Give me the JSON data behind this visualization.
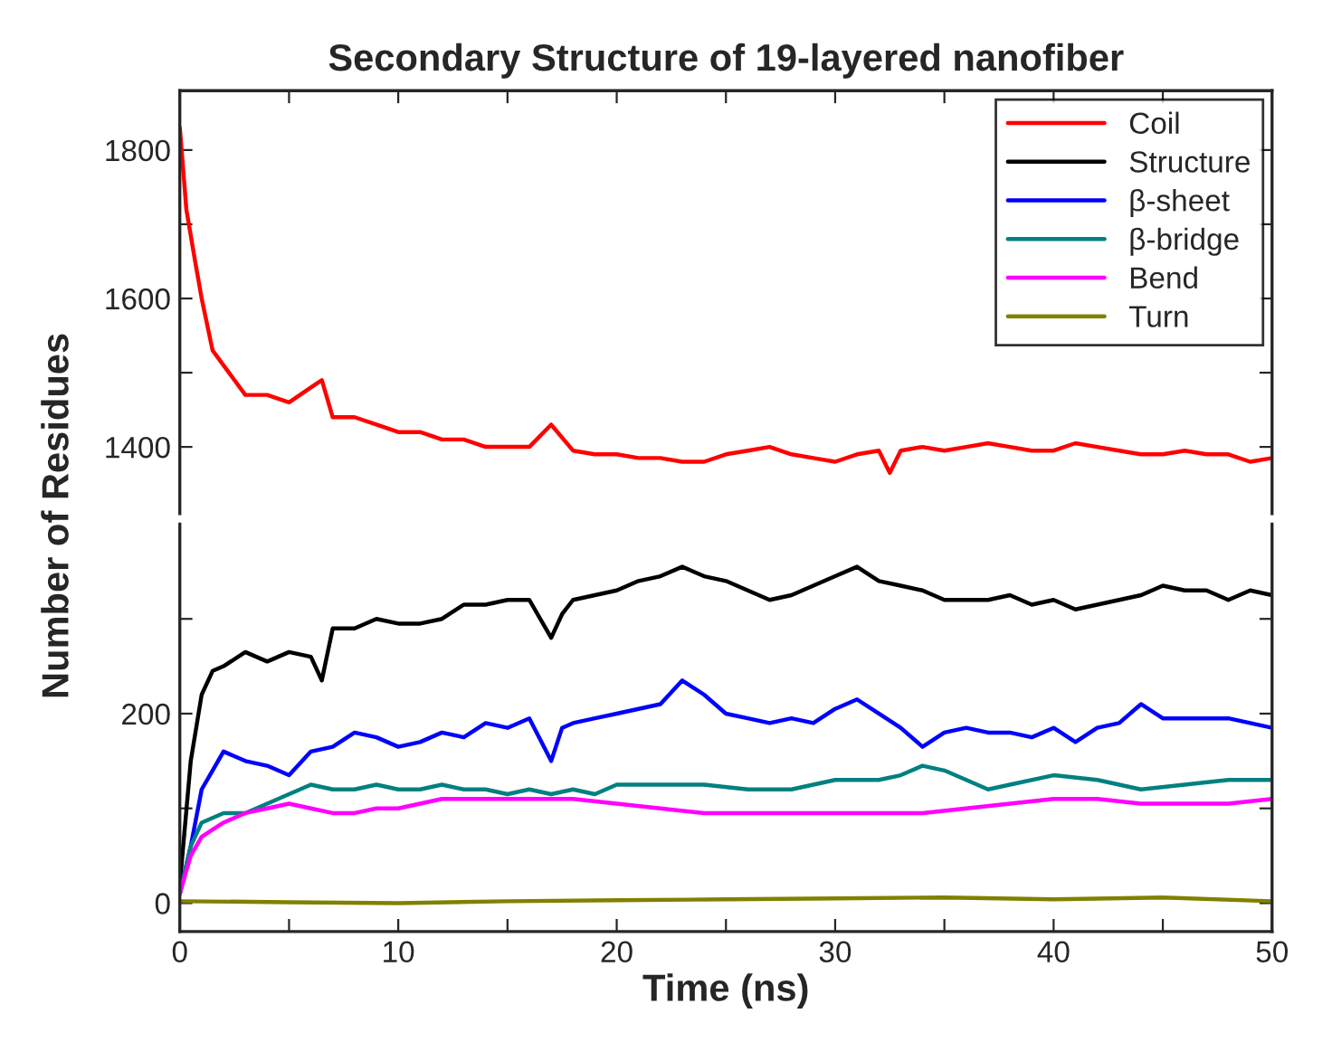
{
  "chart_data": [
    {
      "type": "line",
      "title": "Secondary Structure of 19-layered nanofiber",
      "legend": "top right",
      "tick_labels": "y",
      "grid": false,
      "xlim": [
        0,
        50
      ],
      "xticks": [
        {
          "value": 0,
          "label": null
        },
        {
          "value": 5,
          "label": null
        },
        {
          "value": 10,
          "label": null
        },
        {
          "value": 15,
          "label": null
        },
        {
          "value": 20,
          "label": null
        },
        {
          "value": 25,
          "label": null
        },
        {
          "value": 30,
          "label": null
        },
        {
          "value": 35,
          "label": null
        },
        {
          "value": 40,
          "label": null
        },
        {
          "value": 45,
          "label": null
        },
        {
          "value": 50,
          "label": null
        }
      ],
      "ylim": [
        1310,
        1880
      ],
      "yticks": [
        1400,
        {
          "value": 1500,
          "label": null
        },
        1600,
        {
          "value": 1700,
          "label": null
        },
        1800
      ],
      "series": [
        {
          "name": "Coil",
          "color": "#ff0000",
          "x": [
            0,
            0.3,
            0.7,
            1,
            1.5,
            2,
            2.5,
            3,
            4,
            5,
            6,
            6.5,
            7,
            8,
            9,
            10,
            11,
            12,
            13,
            14,
            15,
            16,
            17,
            18,
            19,
            20,
            21,
            22,
            23,
            24,
            25,
            26,
            27,
            28,
            29,
            30,
            31,
            32,
            32.5,
            33,
            34,
            35,
            36,
            37,
            38,
            39,
            40,
            41,
            42,
            43,
            44,
            45,
            46,
            47,
            48,
            49,
            50
          ],
          "values": [
            1830,
            1720,
            1650,
            1600,
            1530,
            1510,
            1490,
            1470,
            1470,
            1460,
            1480,
            1490,
            1440,
            1440,
            1430,
            1420,
            1420,
            1410,
            1410,
            1400,
            1400,
            1400,
            1430,
            1395,
            1390,
            1390,
            1385,
            1385,
            1380,
            1380,
            1390,
            1395,
            1400,
            1390,
            1385,
            1380,
            1390,
            1395,
            1365,
            1395,
            1400,
            1395,
            1400,
            1405,
            1400,
            1395,
            1395,
            1405,
            1400,
            1395,
            1390,
            1390,
            1395,
            1390,
            1390,
            1380,
            1385
          ]
        }
      ]
    },
    {
      "type": "line",
      "xlabel": "Time (ns)",
      "ylabel": "Number of Residues",
      "grid": false,
      "legend": "top right",
      "xlim": [
        0,
        50
      ],
      "xticks": [
        0,
        {
          "value": 5,
          "label": null
        },
        10,
        {
          "value": 15,
          "label": null
        },
        20,
        {
          "value": 25,
          "label": null
        },
        30,
        {
          "value": 35,
          "label": null
        },
        40,
        {
          "value": 45,
          "label": null
        },
        50
      ],
      "ylim": [
        -30,
        400
      ],
      "yticks": [
        0,
        {
          "value": 100,
          "label": null
        },
        200,
        {
          "value": 300,
          "label": null
        }
      ],
      "series": [
        {
          "name": "Structure",
          "color": "#000000",
          "x": [
            0,
            0.5,
            1,
            1.5,
            2,
            3,
            4,
            5,
            6,
            6.5,
            7,
            8,
            9,
            10,
            11,
            12,
            13,
            14,
            15,
            16,
            17,
            17.5,
            18,
            19,
            20,
            21,
            22,
            23,
            24,
            25,
            26,
            27,
            28,
            29,
            30,
            31,
            32,
            33,
            34,
            35,
            36,
            37,
            38,
            39,
            40,
            41,
            42,
            43,
            44,
            45,
            46,
            47,
            48,
            49,
            50
          ],
          "values": [
            20,
            150,
            220,
            245,
            250,
            265,
            255,
            265,
            260,
            235,
            290,
            290,
            300,
            295,
            295,
            300,
            315,
            315,
            320,
            320,
            280,
            305,
            320,
            325,
            330,
            340,
            345,
            355,
            345,
            340,
            330,
            320,
            325,
            335,
            345,
            355,
            340,
            335,
            330,
            320,
            320,
            320,
            325,
            315,
            320,
            310,
            315,
            320,
            325,
            335,
            330,
            330,
            320,
            330,
            325
          ]
        },
        {
          "name": "β-sheet",
          "color": "#0000ff",
          "x": [
            0,
            0.5,
            1,
            1.5,
            2,
            3,
            4,
            5,
            6,
            7,
            8,
            9,
            10,
            11,
            12,
            13,
            14,
            15,
            16,
            17,
            17.5,
            18,
            19,
            20,
            21,
            22,
            23,
            24,
            25,
            26,
            27,
            28,
            29,
            30,
            31,
            32,
            33,
            34,
            35,
            36,
            37,
            38,
            39,
            40,
            41,
            42,
            43,
            44,
            45,
            46,
            47,
            48,
            49,
            50
          ],
          "values": [
            10,
            60,
            120,
            140,
            160,
            150,
            145,
            135,
            160,
            165,
            180,
            175,
            165,
            170,
            180,
            175,
            190,
            185,
            195,
            150,
            185,
            190,
            195,
            200,
            205,
            210,
            235,
            220,
            200,
            195,
            190,
            195,
            190,
            205,
            215,
            200,
            185,
            165,
            180,
            185,
            180,
            180,
            175,
            185,
            170,
            185,
            190,
            210,
            195,
            195,
            195,
            195,
            190,
            185
          ]
        },
        {
          "name": "β-bridge",
          "color": "#008080",
          "x": [
            0,
            0.5,
            1,
            2,
            3,
            4,
            5,
            6,
            7,
            8,
            9,
            10,
            11,
            12,
            13,
            14,
            15,
            16,
            17,
            18,
            19,
            20,
            22,
            24,
            26,
            28,
            30,
            32,
            33,
            34,
            35,
            36,
            37,
            38,
            40,
            42,
            44,
            46,
            48,
            50
          ],
          "values": [
            10,
            60,
            85,
            95,
            95,
            105,
            115,
            125,
            120,
            120,
            125,
            120,
            120,
            125,
            120,
            120,
            115,
            120,
            115,
            120,
            115,
            125,
            125,
            125,
            120,
            120,
            130,
            130,
            135,
            145,
            140,
            130,
            120,
            125,
            135,
            130,
            120,
            125,
            130,
            130
          ]
        },
        {
          "name": "Bend",
          "color": "#ff00ff",
          "x": [
            0,
            0.5,
            1,
            2,
            3,
            4,
            5,
            6,
            7,
            8,
            9,
            10,
            11,
            12,
            14,
            16,
            18,
            20,
            22,
            24,
            26,
            28,
            30,
            32,
            34,
            36,
            38,
            40,
            42,
            44,
            46,
            48,
            50
          ],
          "values": [
            10,
            50,
            70,
            85,
            95,
            100,
            105,
            100,
            95,
            95,
            100,
            100,
            105,
            110,
            110,
            110,
            110,
            105,
            100,
            95,
            95,
            95,
            95,
            95,
            95,
            100,
            105,
            110,
            110,
            105,
            105,
            105,
            110
          ]
        },
        {
          "name": "Turn",
          "color": "#808000",
          "x": [
            0,
            5,
            10,
            15,
            20,
            25,
            30,
            35,
            40,
            45,
            50
          ],
          "values": [
            2,
            1,
            0,
            2,
            3,
            4,
            5,
            6,
            4,
            6,
            2
          ]
        }
      ]
    }
  ]
}
